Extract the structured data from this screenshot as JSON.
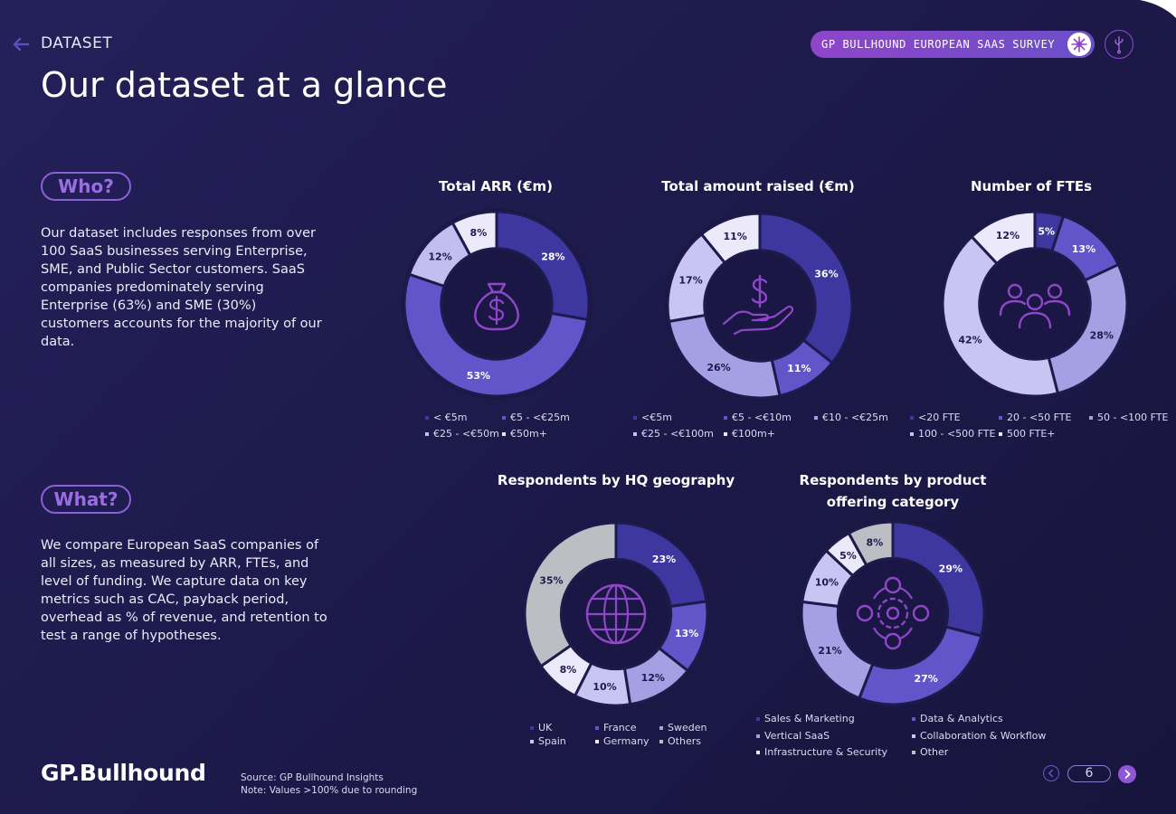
{
  "header": {
    "section": "DATASET",
    "title": "Our dataset at a glance",
    "survey_label": "GP BULLHOUND EUROPEAN SAAS SURVEY"
  },
  "who": {
    "label": "Who?",
    "text": "Our dataset includes responses from over 100 SaaS businesses serving Enterprise, SME, and Public Sector customers. SaaS companies predominately serving Enterprise (63%) and SME (30%) customers accounts for the majority of our data."
  },
  "what": {
    "label": "What?",
    "text": "We compare European SaaS companies of all sizes, as measured by ARR, FTEs, and level of funding. We capture data on key metrics such as CAC, payback period, overhead as % of revenue, and retention to test a range of hypotheses."
  },
  "chart_data": [
    {
      "type": "pie",
      "title": "Total ARR (€m)",
      "icon": "money-bag-icon",
      "categories": [
        "< €5m",
        "€5 - <€25m",
        "€25 - <€50m",
        "€50m+"
      ],
      "values": [
        28,
        53,
        12,
        8
      ],
      "labels": [
        "28%",
        "53%",
        "12%",
        "8%"
      ],
      "colors": [
        "#3f37a0",
        "#6155c9",
        "#c3bdf0",
        "#ece9fb"
      ]
    },
    {
      "type": "pie",
      "title": "Total amount raised (€m)",
      "icon": "dollar-hand-icon",
      "categories": [
        "<€5m",
        "€5 - <€10m",
        "€10 - <€25m",
        "€25 - <€100m",
        "€100m+"
      ],
      "values": [
        36,
        11,
        26,
        17,
        11
      ],
      "labels": [
        "36%",
        "11%",
        "26%",
        "17%",
        "11%"
      ],
      "colors": [
        "#3f37a0",
        "#6155c9",
        "#a59fe4",
        "#c9c4f1",
        "#ece9fb"
      ]
    },
    {
      "type": "pie",
      "title": "Number of FTEs",
      "icon": "people-icon",
      "categories": [
        "<20 FTE",
        "20 - <50 FTE",
        "50 - <100 FTE",
        "100 - <500 FTE",
        "500 FTE+"
      ],
      "values": [
        5,
        13,
        28,
        42,
        12
      ],
      "labels": [
        "5%",
        "13%",
        "28%",
        "42%",
        "12%"
      ],
      "colors": [
        "#3f37a0",
        "#6155c9",
        "#a59fe4",
        "#c9c4f1",
        "#ece9fb"
      ]
    },
    {
      "type": "pie",
      "title": "Respondents by HQ geography",
      "icon": "globe-icon",
      "categories": [
        "UK",
        "France",
        "Sweden",
        "Spain",
        "Germany",
        "Others"
      ],
      "values": [
        23,
        13,
        12,
        10,
        8,
        35
      ],
      "labels": [
        "23%",
        "13%",
        "12%",
        "10%",
        "8%",
        "35%"
      ],
      "colors": [
        "#3f37a0",
        "#6155c9",
        "#a59fe4",
        "#c9c4f1",
        "#ece9fb",
        "#bdbdc4"
      ]
    },
    {
      "type": "pie",
      "title_lines": [
        "Respondents by product",
        "offering category"
      ],
      "icon": "network-gear-icon",
      "categories": [
        "Sales & Marketing",
        "Data & Analytics",
        "Vertical SaaS",
        "Collaboration & Workflow",
        "Infrastructure & Security",
        "Other"
      ],
      "values": [
        29,
        27,
        21,
        10,
        5,
        8
      ],
      "labels": [
        "29%",
        "27%",
        "21%",
        "10%",
        "5%",
        "8%"
      ],
      "colors": [
        "#3f37a0",
        "#6155c9",
        "#a59fe4",
        "#c9c4f1",
        "#ece9fb",
        "#bdbdc4"
      ]
    }
  ],
  "footer": {
    "logo": "GP.Bullhound",
    "source": "Source: GP Bullhound Insights",
    "note": "Note: Values >100% due to rounding",
    "page": "6"
  }
}
